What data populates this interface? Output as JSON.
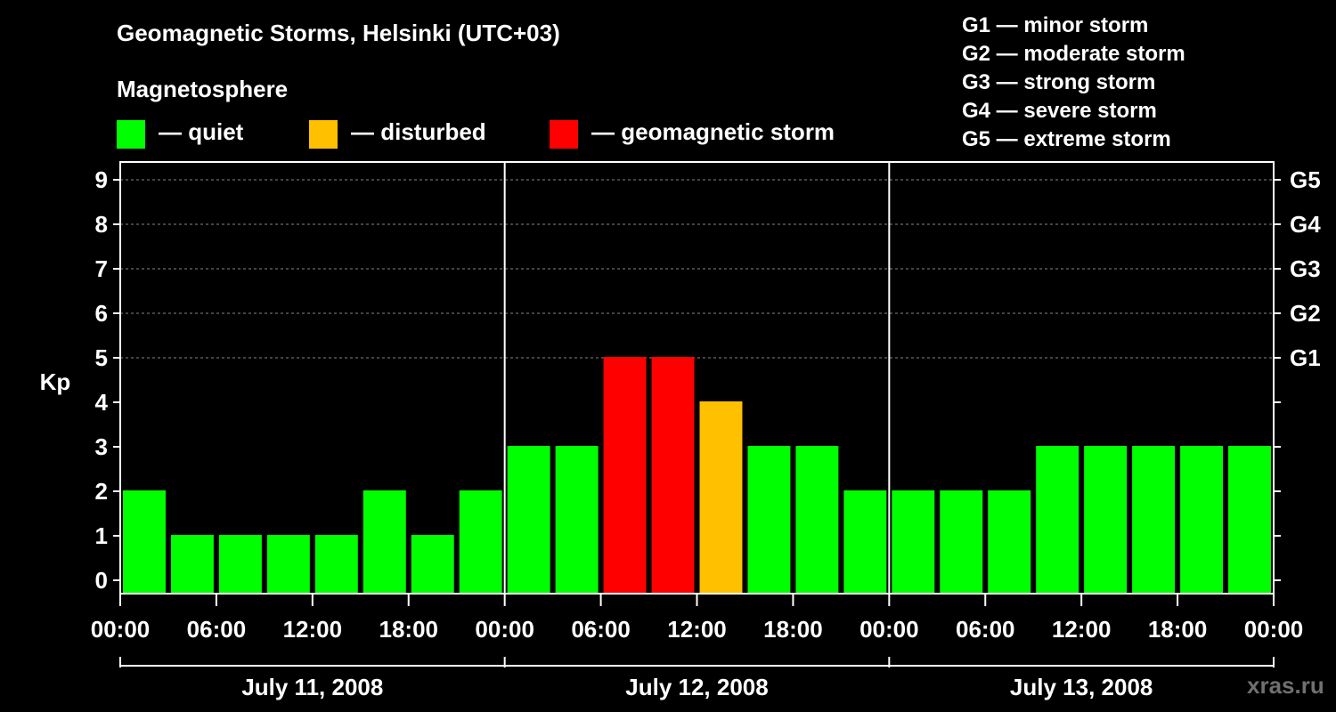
{
  "title": "Geomagnetic Storms, Helsinki (UTC+03)",
  "magnetosphere_label": "Magnetosphere",
  "legend": [
    {
      "label": "— quiet",
      "color": "#00ff00"
    },
    {
      "label": "— disturbed",
      "color": "#ffc000"
    },
    {
      "label": "— geomagnetic storm",
      "color": "#ff0000"
    }
  ],
  "storm_scale": [
    "G1 — minor storm",
    "G2 — moderate storm",
    "G3 — strong storm",
    "G4 — severe storm",
    "G5 — extreme storm"
  ],
  "watermark": "xras.ru",
  "colors": {
    "quiet": "#00ff00",
    "disturbed": "#ffc000",
    "storm": "#ff0000"
  },
  "chart_data": {
    "type": "bar",
    "title": "Geomagnetic Storms, Helsinki (UTC+03)",
    "ylabel": "Kp",
    "ylim": [
      0,
      9
    ],
    "yticks": [
      "0",
      "1",
      "2",
      "3",
      "4",
      "5",
      "6",
      "7",
      "8",
      "9"
    ],
    "right_ticks": [
      {
        "value": 5,
        "label": "G1"
      },
      {
        "value": 6,
        "label": "G2"
      },
      {
        "value": 7,
        "label": "G3"
      },
      {
        "value": 8,
        "label": "G4"
      },
      {
        "value": 9,
        "label": "G5"
      }
    ],
    "xtick_labels": [
      "00:00",
      "06:00",
      "12:00",
      "18:00",
      "00:00",
      "06:00",
      "12:00",
      "18:00",
      "00:00",
      "06:00",
      "12:00",
      "18:00",
      "00:00"
    ],
    "days": [
      "July 11, 2008",
      "July 12, 2008",
      "July 13, 2008"
    ],
    "interval_hours": 3,
    "values": [
      2,
      1,
      1,
      1,
      1,
      2,
      1,
      2,
      3,
      3,
      5,
      5,
      4,
      3,
      3,
      2,
      2,
      2,
      2,
      3,
      3,
      3,
      3,
      3
    ],
    "grid": "dashed horizontal"
  }
}
